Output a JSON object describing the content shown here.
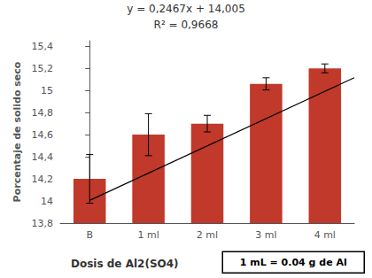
{
  "chart_data": {
    "type": "bar",
    "categories": [
      "B",
      "1 ml",
      "2 ml",
      "3 ml",
      "4 ml"
    ],
    "values": [
      14.2,
      14.6,
      14.7,
      15.06,
      15.2
    ],
    "errors": [
      0.22,
      0.19,
      0.075,
      0.055,
      0.04
    ],
    "color": "#c0392b",
    "trend_line": {
      "type": "line",
      "slope": 0.2467,
      "intercept": 14.005,
      "color": "black"
    },
    "annotations": [
      "y = 0,2467x + 14,005",
      "R² = 0,9668",
      "1 mL = 0.04 g de Al"
    ],
    "xlabel": "Dosis de Al2(SO4)",
    "ylabel": "Porcentaje de solido seco",
    "ylim": [
      13.8,
      15.45
    ],
    "yticks": [
      {
        "value": 13.8,
        "label": "13,8"
      },
      14,
      {
        "value": 14.2,
        "label": "14,2"
      },
      {
        "value": 14.4,
        "label": "14,4"
      },
      {
        "value": 14.6,
        "label": "14,6"
      },
      {
        "value": 14.8,
        "label": "14,8"
      },
      15,
      {
        "value": 15.2,
        "label": "15,2"
      },
      {
        "value": 15.4,
        "label": "15,4"
      }
    ],
    "grid": false
  }
}
